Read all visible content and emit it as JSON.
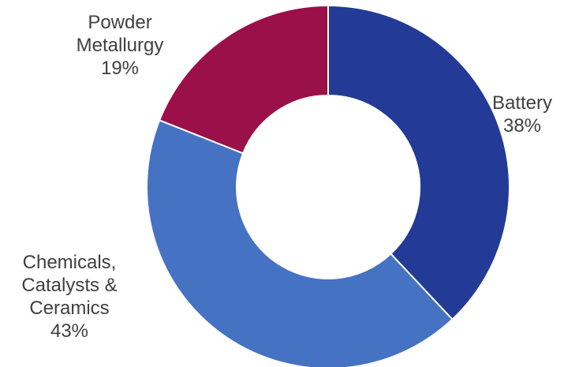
{
  "chart_data": {
    "type": "pie",
    "variant": "donut",
    "slices": [
      {
        "label_lines": [
          "Battery"
        ],
        "label": "Battery",
        "percent_label": "38%",
        "value": 38,
        "color": "#233a96"
      },
      {
        "label_lines": [
          "Chemicals,",
          "Catalysts &",
          "Ceramics"
        ],
        "label": "Chemicals, Catalysts & Ceramics",
        "percent_label": "43%",
        "value": 43,
        "color": "#4672c4"
      },
      {
        "label_lines": [
          "Powder",
          "Metallurgy"
        ],
        "label": "Powder Metallurgy",
        "percent_label": "19%",
        "value": 19,
        "color": "#9b1048"
      }
    ],
    "start_angle": "12 o'clock",
    "direction": "clockwise",
    "legend": "none",
    "title": ""
  }
}
